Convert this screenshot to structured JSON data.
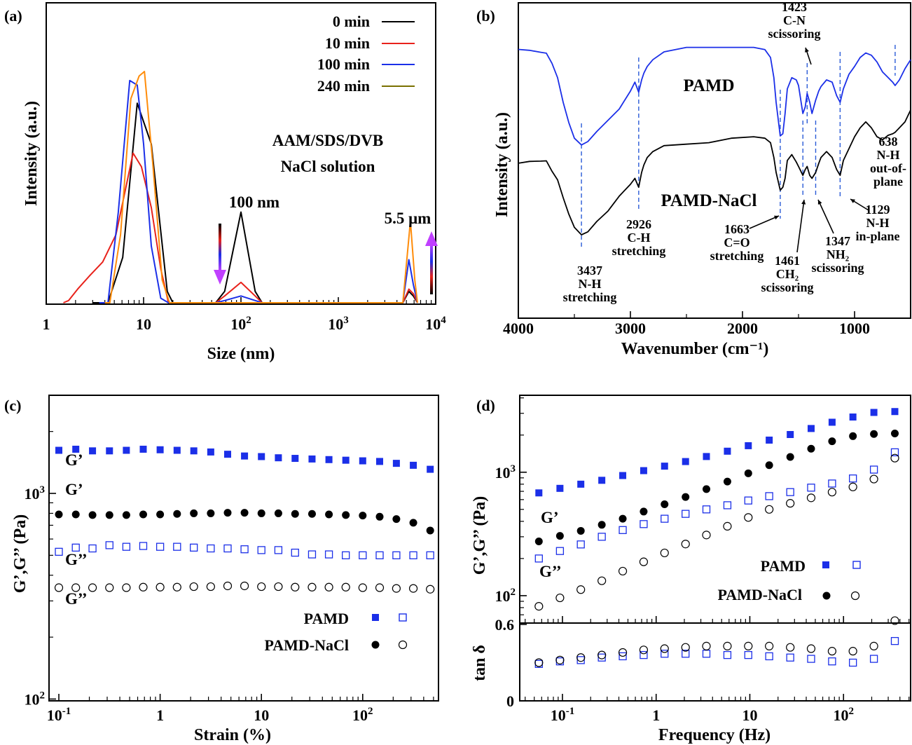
{
  "panels": {
    "a": {
      "label": "(a)",
      "xlabel": "Size (nm)",
      "ylabel": "Intensity (a.u.)",
      "xticks": [
        {
          "v": 1,
          "base": "1",
          "exp": ""
        },
        {
          "v": 10,
          "base": "10",
          "exp": ""
        },
        {
          "v": 100,
          "base": "10",
          "exp": "2"
        },
        {
          "v": 1000,
          "base": "10",
          "exp": "3"
        },
        {
          "v": 10000,
          "base": "10",
          "exp": "4"
        }
      ],
      "annotations": {
        "system_line1": "AAM/SDS/DVB",
        "system_line2": "NaCl solution",
        "peak1": "100 nm",
        "peak2": "5.5 μm"
      }
    },
    "b": {
      "label": "(b)",
      "xlabel": "Wavenumber (cm⁻¹)",
      "ylabel": "Intensity (a.u.)",
      "xticks": [
        "4000",
        "3000",
        "2000",
        "1000"
      ],
      "series_labels": {
        "pamd": "PAMD",
        "pamd_nacl": "PAMD-NaCl"
      },
      "bands": [
        {
          "wn": 3437,
          "lines": [
            "3437",
            "N-H",
            "stretching"
          ]
        },
        {
          "wn": 2926,
          "lines": [
            "2926",
            "C-H",
            "stretching"
          ]
        },
        {
          "wn": 1663,
          "lines": [
            "1663",
            "C=O",
            "stretching"
          ]
        },
        {
          "wn": 1461,
          "lines": [
            "1461",
            "CH₂",
            "scissoring"
          ]
        },
        {
          "wn": 1423,
          "lines": [
            "1423",
            "C-N",
            "scissoring"
          ]
        },
        {
          "wn": 1347,
          "lines": [
            "1347",
            "NH₂",
            "scissoring"
          ]
        },
        {
          "wn": 1129,
          "lines": [
            "1129",
            "N-H",
            "in-plane"
          ]
        },
        {
          "wn": 638,
          "lines": [
            "638",
            "N-H",
            "out-of-",
            "plane"
          ]
        }
      ]
    },
    "c": {
      "label": "(c)",
      "xlabel": "Strain (%)",
      "ylabel": "G’,G’’ (Pa)",
      "xticks": [
        {
          "v": 0.1,
          "base": "10",
          "exp": "-1"
        },
        {
          "v": 1,
          "base": "1",
          "exp": ""
        },
        {
          "v": 10,
          "base": "10",
          "exp": ""
        },
        {
          "v": 100,
          "base": "10",
          "exp": "2"
        }
      ],
      "yticks": [
        {
          "v": 100,
          "base": "10",
          "exp": "2"
        },
        {
          "v": 1000,
          "base": "10",
          "exp": "3"
        }
      ],
      "curve_labels": {
        "g1_pamd": "G’",
        "g1_nacl": "G’",
        "g2_pamd": "G’’",
        "g2_nacl": "G’’"
      },
      "legend": {
        "pamd": "PAMD",
        "pamd_nacl": "PAMD-NaCl"
      }
    },
    "d": {
      "label": "(d)",
      "xlabel": "Frequency (Hz)",
      "ylabel": "G’,G’’ (Pa)",
      "ylabel_bottom": "tan δ",
      "xticks": [
        {
          "v": 0.1,
          "base": "10",
          "exp": "-1"
        },
        {
          "v": 1,
          "base": "1",
          "exp": ""
        },
        {
          "v": 10,
          "base": "10",
          "exp": ""
        },
        {
          "v": 100,
          "base": "10",
          "exp": "2"
        }
      ],
      "yticks_top": [
        {
          "v": 100,
          "base": "10",
          "exp": "2"
        },
        {
          "v": 1000,
          "base": "10",
          "exp": "3"
        }
      ],
      "yticks_bottom": [
        "0",
        "0.6"
      ],
      "curve_labels": {
        "g1": "G’",
        "g2": "G’’"
      },
      "legend": {
        "pamd": "PAMD",
        "pamd_nacl": "PAMD-NaCl"
      }
    }
  },
  "colors": {
    "c0": "#000000",
    "c10": "#e8221b",
    "c100": "#1b2fe8",
    "c240": "#ff8c0a",
    "pamd": "#1b2fe8",
    "nacl": "#000000",
    "legend240": "#7a7000",
    "arrow_down": "#c040ff",
    "arrow_up": "#c040ff",
    "band_line": "#2a5bd7"
  },
  "chart_data": [
    {
      "panel": "a",
      "type": "line",
      "title": "",
      "xlabel": "Size (nm)",
      "ylabel": "Intensity (a.u.)",
      "xscale": "log",
      "xlim": [
        1,
        10000
      ],
      "legend_position": "top-right",
      "series": [
        {
          "name": "0 min",
          "color": "#000000",
          "x": [
            3,
            4.3,
            6.1,
            8.6,
            12,
            17.5,
            20,
            55,
            68,
            100,
            140,
            165,
            4600,
            5300,
            5900,
            6500
          ],
          "y": [
            0,
            0,
            20,
            88,
            70,
            5,
            0,
            0,
            5,
            40,
            5,
            0,
            0,
            5,
            3,
            0
          ]
        },
        {
          "name": "10 min",
          "color": "#e8221b",
          "x": [
            1.5,
            1.7,
            2.1,
            2.8,
            3.8,
            5.2,
            7.8,
            9.5,
            12,
            15,
            18,
            55,
            68,
            100,
            140,
            165,
            4600,
            5300,
            5900,
            6500
          ],
          "y": [
            0,
            1,
            6,
            12,
            18,
            30,
            66,
            60,
            42,
            15,
            0,
            0,
            3,
            9,
            3,
            0,
            0,
            6,
            4,
            0
          ]
        },
        {
          "name": "100 min",
          "color": "#1b2fe8",
          "x": [
            3.5,
            4.3,
            5.5,
            7.2,
            8.6,
            10,
            12,
            15,
            18,
            55,
            68,
            100,
            140,
            165,
            4600,
            5300,
            5900,
            6500
          ],
          "y": [
            0,
            0,
            40,
            98,
            96,
            70,
            25,
            2,
            0,
            0,
            1,
            3,
            1,
            0,
            0,
            19,
            8,
            0
          ]
        },
        {
          "name": "240 min",
          "color": "#ff8c0a",
          "x": [
            4,
            4.5,
            5.8,
            7.4,
            9,
            10.2,
            12.5,
            15.5,
            18.5,
            4600,
            5500,
            6100,
            6500
          ],
          "y": [
            0,
            0,
            30,
            90,
            100,
            102,
            60,
            10,
            0,
            0,
            36,
            10,
            0
          ]
        }
      ]
    },
    {
      "panel": "b",
      "type": "line",
      "title": "",
      "xlabel": "Wavenumber (cm⁻¹)",
      "ylabel": "Intensity (a.u.)",
      "xlim": [
        4000,
        500
      ],
      "series": [
        {
          "name": "PAMD",
          "color": "#1b2fe8",
          "x": [
            4000,
            3900,
            3800,
            3750,
            3700,
            3650,
            3600,
            3550,
            3500,
            3437,
            3380,
            3300,
            3200,
            3100,
            3000,
            2960,
            2926,
            2900,
            2880,
            2850,
            2800,
            2700,
            2500,
            2300,
            2100,
            1900,
            1800,
            1750,
            1720,
            1700,
            1663,
            1640,
            1620,
            1600,
            1560,
            1520,
            1500,
            1461,
            1440,
            1423,
            1400,
            1380,
            1347,
            1320,
            1300,
            1250,
            1200,
            1160,
            1129,
            1100,
            1050,
            1000,
            950,
            900,
            850,
            800,
            750,
            700,
            660,
            638,
            600,
            550,
            500
          ],
          "y": [
            89,
            87,
            84,
            82,
            76,
            62,
            40,
            22,
            8,
            2,
            5,
            14,
            24,
            34,
            50,
            58,
            49,
            60,
            66,
            72,
            78,
            85,
            89,
            89,
            89,
            89,
            87,
            80,
            62,
            40,
            10,
            12,
            30,
            52,
            62,
            60,
            55,
            30,
            36,
            48,
            40,
            30,
            42,
            50,
            54,
            60,
            58,
            46,
            40,
            52,
            65,
            72,
            80,
            84,
            82,
            76,
            67,
            62,
            58,
            55,
            60,
            70,
            78
          ]
        },
        {
          "name": "PAMD-NaCl",
          "color": "#000000",
          "x": [
            4000,
            3900,
            3800,
            3750,
            3700,
            3650,
            3600,
            3550,
            3500,
            3437,
            3380,
            3300,
            3200,
            3100,
            3000,
            2960,
            2926,
            2900,
            2880,
            2850,
            2800,
            2700,
            2500,
            2300,
            2100,
            1900,
            1800,
            1750,
            1720,
            1700,
            1663,
            1640,
            1620,
            1600,
            1560,
            1520,
            1500,
            1461,
            1440,
            1423,
            1400,
            1380,
            1347,
            1320,
            1300,
            1250,
            1200,
            1160,
            1129,
            1100,
            1050,
            1000,
            950,
            900,
            850,
            800,
            750,
            700,
            660,
            638,
            600,
            550,
            500
          ],
          "y": [
            58,
            58,
            57,
            56,
            52,
            45,
            33,
            22,
            13,
            8,
            10,
            17,
            24,
            34,
            42,
            46,
            40,
            50,
            55,
            60,
            64,
            68,
            69,
            70,
            73,
            74,
            73,
            70,
            60,
            50,
            38,
            40,
            46,
            58,
            62,
            57,
            54,
            48,
            52,
            54,
            48,
            46,
            50,
            56,
            60,
            64,
            60,
            52,
            48,
            58,
            66,
            74,
            80,
            84,
            80,
            74,
            72,
            75,
            76,
            77,
            80,
            84,
            92
          ]
        }
      ]
    },
    {
      "panel": "c",
      "type": "scatter",
      "title": "",
      "xlabel": "Strain (%)",
      "ylabel": "G’,G’’ (Pa)",
      "xscale": "log",
      "yscale": "log",
      "xlim": [
        0.08,
        560
      ],
      "ylim": [
        100,
        3000
      ],
      "x": [
        0.1,
        0.147,
        0.215,
        0.316,
        0.464,
        0.681,
        1,
        1.47,
        2.15,
        3.16,
        4.64,
        6.81,
        10,
        14.7,
        21.5,
        31.6,
        46.4,
        68.1,
        100,
        147,
        215,
        316,
        464
      ],
      "series": [
        {
          "name": "PAMD",
          "quantity": "G’",
          "marker": "filled-square",
          "color": "#1b2fe8",
          "values": [
            1620,
            1640,
            1610,
            1610,
            1620,
            1640,
            1630,
            1620,
            1610,
            1590,
            1550,
            1520,
            1510,
            1490,
            1480,
            1470,
            1460,
            1450,
            1440,
            1430,
            1400,
            1370,
            1310
          ]
        },
        {
          "name": "PAMD",
          "quantity": "G’’",
          "marker": "open-square",
          "color": "#1b2fe8",
          "values": [
            520,
            545,
            540,
            560,
            550,
            555,
            550,
            550,
            545,
            540,
            540,
            535,
            530,
            530,
            515,
            505,
            505,
            500,
            500,
            500,
            500,
            500,
            500
          ]
        },
        {
          "name": "PAMD-NaCl",
          "quantity": "G’",
          "marker": "filled-circle",
          "color": "#000000",
          "values": [
            790,
            790,
            785,
            785,
            785,
            790,
            790,
            795,
            800,
            800,
            805,
            805,
            800,
            800,
            795,
            795,
            790,
            785,
            780,
            770,
            750,
            720,
            660
          ]
        },
        {
          "name": "PAMD-NaCl",
          "quantity": "G’’",
          "marker": "open-circle",
          "color": "#000000",
          "values": [
            348,
            348,
            348,
            348,
            348,
            350,
            350,
            350,
            352,
            352,
            355,
            355,
            352,
            352,
            350,
            350,
            350,
            350,
            348,
            348,
            345,
            345,
            342
          ]
        }
      ]
    },
    {
      "panel": "d",
      "type": "scatter",
      "title": "",
      "xlabel": "Frequency (Hz)",
      "ylabel": "G’,G’’ (Pa)",
      "xscale": "log",
      "yscale": "log",
      "xlim": [
        0.035,
        520
      ],
      "ylim": [
        60,
        4200
      ],
      "x": [
        0.056,
        0.094,
        0.157,
        0.263,
        0.44,
        0.736,
        1.23,
        2.06,
        3.44,
        5.76,
        9.63,
        16.1,
        27,
        45.1,
        75.5,
        126,
        211,
        353
      ],
      "series": [
        {
          "name": "PAMD",
          "quantity": "G’",
          "marker": "filled-square",
          "color": "#1b2fe8",
          "values": [
            680,
            740,
            800,
            860,
            940,
            1030,
            1120,
            1220,
            1340,
            1480,
            1640,
            1820,
            2020,
            2260,
            2540,
            2800,
            3050,
            3100
          ]
        },
        {
          "name": "PAMD",
          "quantity": "G’’",
          "marker": "open-square",
          "color": "#1b2fe8",
          "values": [
            200,
            230,
            260,
            300,
            340,
            380,
            420,
            460,
            500,
            540,
            590,
            640,
            690,
            750,
            810,
            890,
            1050,
            1450
          ]
        },
        {
          "name": "PAMD-NaCl",
          "quantity": "G’",
          "marker": "filled-circle",
          "color": "#000000",
          "values": [
            275,
            305,
            335,
            375,
            420,
            480,
            550,
            630,
            730,
            840,
            980,
            1140,
            1330,
            1550,
            1780,
            1960,
            2040,
            2060
          ]
        },
        {
          "name": "PAMD-NaCl",
          "quantity": "G’’",
          "marker": "open-circle",
          "color": "#000000",
          "values": [
            82,
            96,
            112,
            132,
            158,
            188,
            222,
            262,
            310,
            365,
            430,
            500,
            560,
            620,
            690,
            760,
            880,
            1300
          ]
        }
      ],
      "tan_delta": {
        "ylabel": "tan δ",
        "ylim": [
          0,
          0.6
        ],
        "series": [
          {
            "name": "PAMD",
            "color": "#1b2fe8",
            "values": [
              0.29,
              0.31,
              0.32,
              0.34,
              0.35,
              0.36,
              0.37,
              0.37,
              0.37,
              0.36,
              0.36,
              0.35,
              0.34,
              0.33,
              0.31,
              0.3,
              0.33,
              0.47
            ]
          },
          {
            "name": "PAMD-NaCl",
            "color": "#000000",
            "values": [
              0.3,
              0.32,
              0.34,
              0.36,
              0.38,
              0.4,
              0.41,
              0.42,
              0.43,
              0.43,
              0.43,
              0.43,
              0.42,
              0.41,
              0.39,
              0.39,
              0.43,
              0.63
            ]
          }
        ]
      }
    }
  ]
}
